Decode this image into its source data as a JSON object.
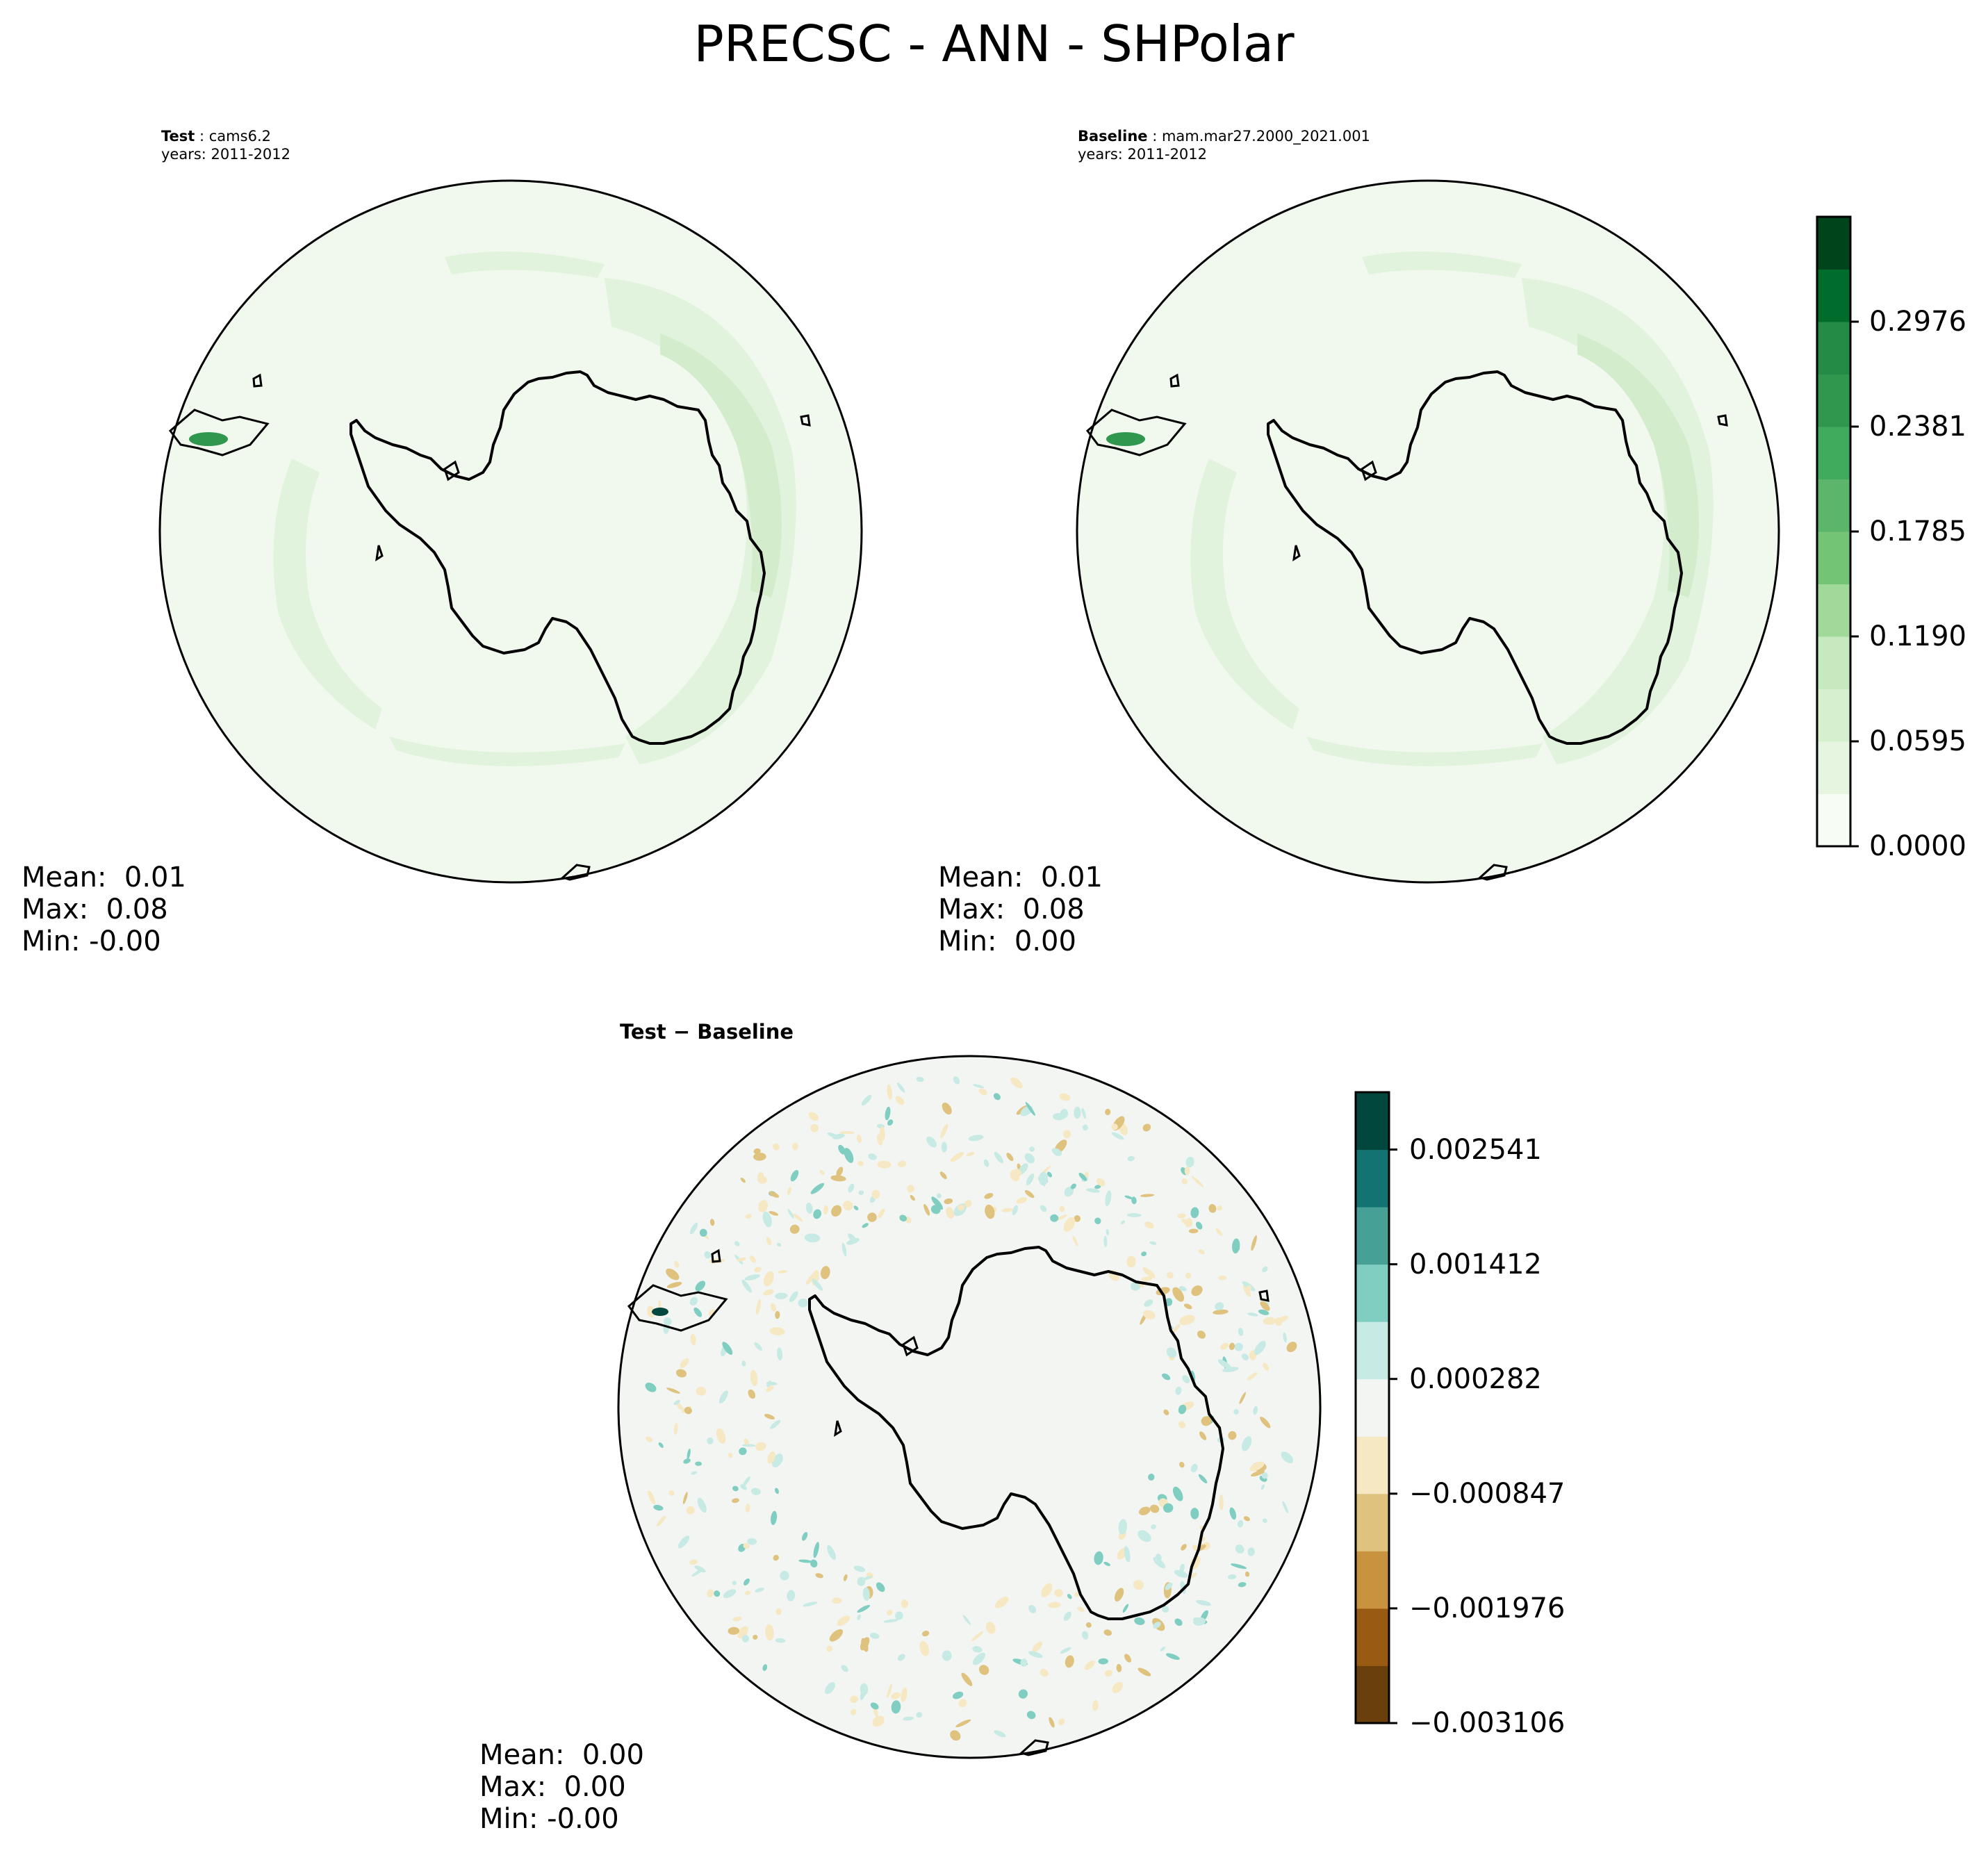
{
  "title": "PRECSC - ANN - SHPolar",
  "test_panel": {
    "label": "Test",
    "name": "cams6.2",
    "years": "years: 2011-2012",
    "stats": {
      "mean": "Mean:  0.01",
      "max": "Max:  0.08",
      "min": "Min: -0.00"
    }
  },
  "baseline_panel": {
    "label": "Baseline",
    "name": "mam.mar27.2000_2021.001",
    "years": "years: 2011-2012",
    "stats": {
      "mean": "Mean:  0.01",
      "max": "Max:  0.08",
      "min": "Min:  0.00"
    }
  },
  "diff_panel": {
    "title_a": "Test",
    "title_sep": "−",
    "title_b": "Baseline",
    "stats": {
      "mean": "Mean:  0.00",
      "max": "Max:  0.00",
      "min": "Min: -0.00"
    }
  },
  "colorbar_main": {
    "ticks": [
      "0.0000",
      "0.0595",
      "0.1190",
      "0.1785",
      "0.2381",
      "0.2976"
    ],
    "colors": [
      "#f7fcf5",
      "#e5f5e0",
      "#d5efcf",
      "#c7e9c0",
      "#a1d99b",
      "#74c476",
      "#5bb56b",
      "#41ab5d",
      "#2f974e",
      "#238b45",
      "#006d2c",
      "#00441b"
    ]
  },
  "colorbar_diff": {
    "ticks": [
      "−0.003106",
      "−0.001976",
      "−0.000847",
      "0.000282",
      "0.001412",
      "0.002541"
    ],
    "colors": [
      "#6b3f0b",
      "#995a14",
      "#c8923f",
      "#dfc27d",
      "#f6e8c3",
      "#f3f5f3",
      "#c7eae5",
      "#80cdc1",
      "#46a096",
      "#137372",
      "#01473e"
    ]
  }
}
